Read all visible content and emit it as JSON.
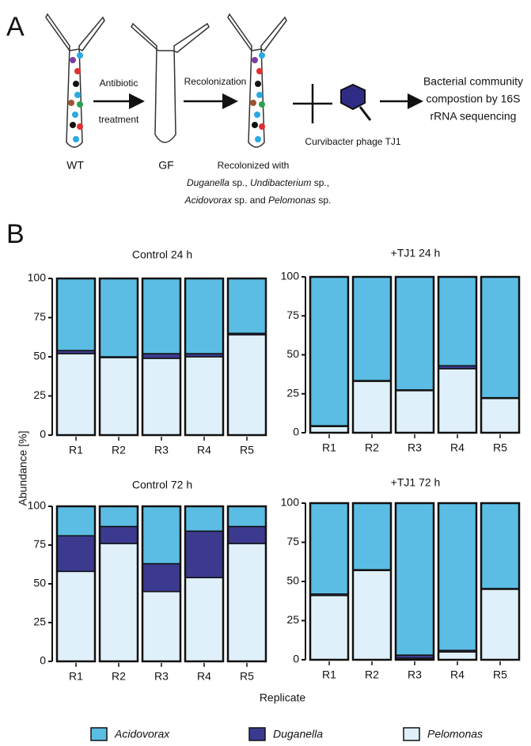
{
  "panel_a": {
    "label": "A",
    "wt": "WT",
    "gf": "GF",
    "step1": [
      "Antibiotic",
      "treatment"
    ],
    "step2": "Recolonization",
    "recolonized": {
      "line1": "Recolonized with",
      "duganella": "Duganella",
      "sp1": " sp., ",
      "undibacterium": "Undibacterium",
      "sp2": " sp.,",
      "acidovorax": "Acidovorax",
      "sp3": " sp. and ",
      "pelomonas": "Pelomonas",
      "sp4": " sp."
    },
    "phage": "Curvibacter phage TJ1",
    "result": [
      "Bacterial community",
      "compostion by 16S",
      "rRNA sequencing"
    ]
  },
  "panel_b": {
    "label": "B",
    "ylabel": "Abundance [%]",
    "xlabel": "Replicate"
  },
  "chart_data": [
    {
      "type": "bar",
      "stacked": true,
      "title": "Control 24 h",
      "categories": [
        "R1",
        "R2",
        "R3",
        "R4",
        "R5"
      ],
      "series": [
        {
          "name": "Pelomonas",
          "color": "#dff0fa",
          "values": [
            52,
            49.5,
            49,
            50,
            64
          ]
        },
        {
          "name": "Duganella",
          "color": "#3c3a8f",
          "values": [
            2,
            0.5,
            3,
            2,
            1
          ]
        },
        {
          "name": "Acidovorax",
          "color": "#5bbde4",
          "values": [
            46,
            50,
            48,
            48,
            35
          ]
        }
      ],
      "ylim": [
        0,
        100
      ],
      "yticks": [
        0,
        25,
        50,
        75,
        100
      ]
    },
    {
      "type": "bar",
      "stacked": true,
      "title": "+TJ1 24 h",
      "categories": [
        "R1",
        "R2",
        "R3",
        "R4",
        "R5"
      ],
      "series": [
        {
          "name": "Pelomonas",
          "color": "#dff0fa",
          "values": [
            4,
            33,
            27,
            41,
            22
          ]
        },
        {
          "name": "Duganella",
          "color": "#3c3a8f",
          "values": [
            0.5,
            0.5,
            0.5,
            2,
            0.5
          ]
        },
        {
          "name": "Acidovorax",
          "color": "#5bbde4",
          "values": [
            95.5,
            66.5,
            72.5,
            57,
            77.5
          ]
        }
      ],
      "ylim": [
        0,
        100
      ],
      "yticks": [
        0,
        25,
        50,
        75,
        100
      ]
    },
    {
      "type": "bar",
      "stacked": true,
      "title": "Control 72 h",
      "categories": [
        "R1",
        "R2",
        "R3",
        "R4",
        "R5"
      ],
      "series": [
        {
          "name": "Pelomonas",
          "color": "#dff0fa",
          "values": [
            58,
            76,
            45,
            54,
            76
          ]
        },
        {
          "name": "Duganella",
          "color": "#3c3a8f",
          "values": [
            23,
            11,
            18,
            30,
            11
          ]
        },
        {
          "name": "Acidovorax",
          "color": "#5bbde4",
          "values": [
            19,
            13,
            37,
            16,
            13
          ]
        }
      ],
      "ylim": [
        0,
        100
      ],
      "yticks": [
        0,
        25,
        50,
        75,
        100
      ]
    },
    {
      "type": "bar",
      "stacked": true,
      "title": "+TJ1 72 h",
      "categories": [
        "R1",
        "R2",
        "R3",
        "R4",
        "R5"
      ],
      "series": [
        {
          "name": "Pelomonas",
          "color": "#dff0fa",
          "values": [
            41,
            57,
            1,
            5,
            45
          ]
        },
        {
          "name": "Duganella",
          "color": "#3c3a8f",
          "values": [
            1,
            0.5,
            2,
            1,
            0.5
          ]
        },
        {
          "name": "Acidovorax",
          "color": "#5bbde4",
          "values": [
            58,
            42.5,
            97,
            94,
            54.5
          ]
        }
      ],
      "ylim": [
        0,
        100
      ],
      "yticks": [
        0,
        25,
        50,
        75,
        100
      ]
    }
  ]
}
